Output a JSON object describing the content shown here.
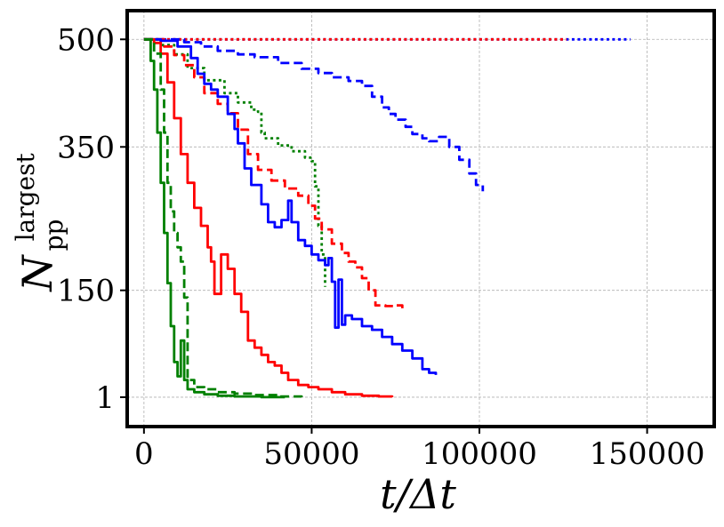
{
  "chart_data": {
    "type": "line",
    "title": "",
    "xlabel": "t/Δt",
    "ylabel": "N_pp^largest",
    "ylabel_main": "N",
    "ylabel_sub": "pp",
    "ylabel_sup": "largest",
    "xlim": [
      -5000,
      170000
    ],
    "ylim": [
      -40,
      540
    ],
    "xticks": [
      0,
      50000,
      100000,
      150000
    ],
    "xtick_labels": [
      "0",
      "50000",
      "100000",
      "150000"
    ],
    "yticks": [
      1,
      150,
      350,
      500
    ],
    "ytick_labels": [
      "1",
      "150",
      "350",
      "500"
    ],
    "grid": true,
    "legend": "none",
    "series": [
      {
        "color": "#0000ff",
        "style": "dotted",
        "x": [
          0,
          145000
        ],
        "y": [
          500,
          500
        ]
      },
      {
        "color": "#ff0000",
        "style": "dotted",
        "x": [
          0,
          126000
        ],
        "y": [
          500,
          500
        ]
      },
      {
        "color": "#0000ff",
        "style": "dashed",
        "x": [
          0,
          8000,
          12000,
          17000,
          22000,
          28000,
          33000,
          40000,
          47000,
          52000,
          56000,
          61000,
          65000,
          68000,
          71000,
          73000,
          75000,
          78000,
          80000,
          83000,
          85000,
          88000,
          91000,
          94000,
          97000,
          99000,
          101000
        ],
        "y": [
          500,
          500,
          496,
          490,
          484,
          479,
          475,
          467,
          459,
          453,
          447,
          442,
          435,
          420,
          405,
          396,
          388,
          378,
          368,
          362,
          358,
          364,
          350,
          332,
          313,
          297,
          288
        ]
      },
      {
        "color": "#008000",
        "style": "dotted",
        "x": [
          0,
          5000,
          9000,
          13000,
          18000,
          24000,
          28000,
          32000,
          34000,
          35000,
          36000,
          40000,
          44000,
          48000,
          50000,
          51000,
          52000,
          53000,
          54000
        ],
        "y": [
          500,
          492,
          479,
          460,
          443,
          425,
          412,
          402,
          399,
          370,
          362,
          352,
          344,
          335,
          330,
          295,
          240,
          200,
          155
        ]
      },
      {
        "color": "#ff0000",
        "style": "dashed",
        "x": [
          0,
          6000,
          9000,
          12000,
          15000,
          18000,
          22000,
          25000,
          28000,
          31000,
          34000,
          38000,
          42000,
          46000,
          49000,
          51000,
          53000,
          56000,
          59000,
          61000,
          63000,
          65000,
          67000,
          69000,
          72000,
          75000,
          77000
        ],
        "y": [
          500,
          490,
          478,
          464,
          447,
          425,
          410,
          397,
          374,
          340,
          318,
          303,
          292,
          282,
          268,
          250,
          235,
          215,
          202,
          190,
          182,
          167,
          150,
          129,
          128,
          129,
          125
        ]
      },
      {
        "color": "#0000ff",
        "style": "solid",
        "x": [
          0,
          5000,
          10000,
          14000,
          16000,
          18000,
          20000,
          22000,
          25000,
          27000,
          28000,
          30000,
          32000,
          35000,
          37000,
          39000,
          41000,
          43000,
          44000,
          46000,
          48000,
          50000,
          52000,
          54000,
          55000,
          56000,
          57000,
          58000,
          59000,
          60000,
          62000,
          65000,
          68000,
          71000,
          74000,
          77000,
          80000,
          83000,
          85000,
          87000
        ],
        "y": [
          500,
          498,
          490,
          474,
          452,
          438,
          430,
          420,
          396,
          375,
          355,
          320,
          297,
          270,
          245,
          238,
          248,
          275,
          245,
          220,
          212,
          200,
          192,
          185,
          195,
          162,
          98,
          165,
          102,
          115,
          110,
          100,
          95,
          85,
          75,
          66,
          55,
          40,
          35,
          32
        ]
      },
      {
        "color": "#ff0000",
        "style": "solid",
        "x": [
          0,
          3000,
          5000,
          7000,
          9000,
          11000,
          13000,
          15000,
          17000,
          19000,
          20000,
          21000,
          23000,
          25000,
          27000,
          29000,
          31000,
          33000,
          35000,
          37000,
          39000,
          41000,
          43000,
          46000,
          49000,
          52000,
          56000,
          60000,
          65000,
          70000,
          74000
        ],
        "y": [
          500,
          495,
          480,
          440,
          390,
          340,
          300,
          265,
          240,
          210,
          190,
          145,
          200,
          180,
          145,
          120,
          80,
          70,
          60,
          50,
          45,
          35,
          25,
          18,
          15,
          12,
          8,
          5,
          3,
          2,
          1
        ]
      },
      {
        "color": "#008000",
        "style": "dashed",
        "x": [
          0,
          3000,
          5000,
          6000,
          7000,
          8000,
          9000,
          10000,
          11000,
          12000,
          13000,
          15000,
          18000,
          22000,
          27000,
          33000,
          40000,
          47000
        ],
        "y": [
          500,
          480,
          430,
          370,
          300,
          260,
          230,
          210,
          190,
          140,
          25,
          15,
          12,
          8,
          6,
          4,
          2,
          1
        ]
      },
      {
        "color": "#008000",
        "style": "solid",
        "x": [
          0,
          2000,
          3000,
          4000,
          5000,
          6000,
          7000,
          8000,
          9000,
          10000,
          11000,
          12000,
          13000,
          15000,
          18000,
          22000,
          27000,
          35000,
          42000
        ],
        "y": [
          500,
          470,
          430,
          370,
          300,
          230,
          160,
          100,
          50,
          30,
          80,
          25,
          12,
          8,
          5,
          3,
          2,
          1,
          1
        ]
      }
    ]
  }
}
